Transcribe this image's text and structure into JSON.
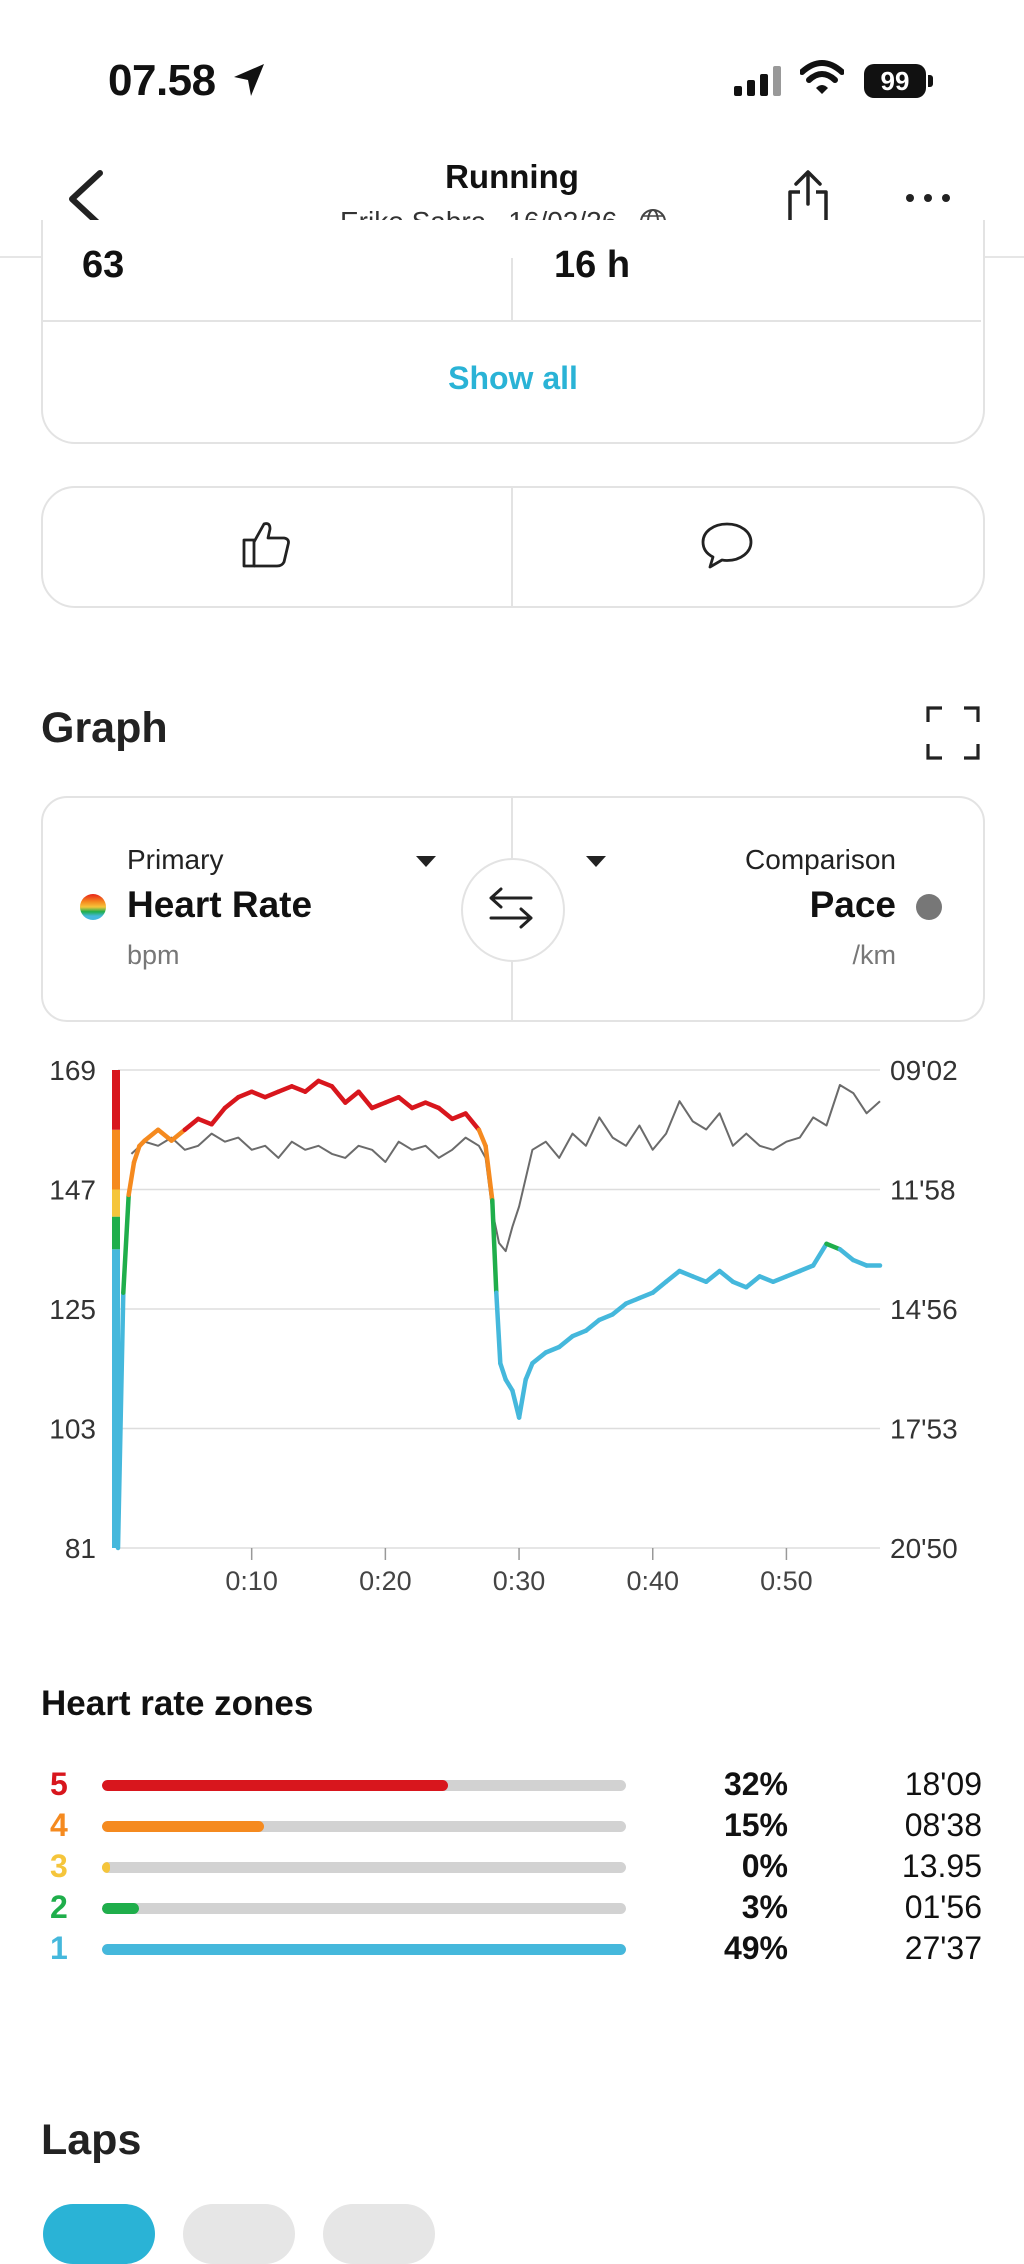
{
  "status_bar": {
    "time": "07.58",
    "battery": "99"
  },
  "header": {
    "title": "Running",
    "athlete": "Eriko Sabra",
    "date": "16/02/26"
  },
  "stats": {
    "left_value": "63",
    "right_value": "16 h",
    "show_all_label": "Show all"
  },
  "graph": {
    "title": "Graph",
    "primary": {
      "label": "Primary",
      "name": "Heart Rate",
      "unit": "bpm"
    },
    "comparison": {
      "label": "Comparison",
      "name": "Pace",
      "unit": "/km"
    }
  },
  "chart_data": {
    "type": "line",
    "left_axis": {
      "ticks": [
        "169",
        "147",
        "125",
        "103",
        "81"
      ],
      "ylim": [
        81,
        169
      ]
    },
    "right_axis": {
      "ticks": [
        "09'02",
        "11'58",
        "14'56",
        "17'53",
        "20'50"
      ]
    },
    "x_ticks": [
      "0:10",
      "0:20",
      "0:30",
      "0:40",
      "0:50"
    ],
    "xlim_min": [
      0,
      57
    ],
    "zone_colors": [
      "#45b8dc",
      "#1fae4b",
      "#f5c53b",
      "#f58a1f",
      "#d8161d"
    ],
    "zone_bounds_bpm": [
      81,
      136,
      142,
      147,
      158,
      169
    ],
    "series": [
      {
        "name": "Heart Rate",
        "x": [
          0,
          0.4,
          0.8,
          1.2,
          1.6,
          2,
          3,
          4,
          5,
          6,
          7,
          8,
          9,
          10,
          11,
          12,
          13,
          14,
          15,
          16,
          17,
          18,
          19,
          20,
          21,
          22,
          23,
          24,
          25,
          26,
          27,
          27.5,
          28,
          28.3,
          28.6,
          29,
          29.5,
          30,
          30.5,
          31,
          32,
          33,
          34,
          35,
          36,
          37,
          38,
          39,
          40,
          41,
          42,
          43,
          44,
          45,
          46,
          47,
          48,
          49,
          50,
          51,
          52,
          53,
          54,
          55,
          56,
          57
        ],
        "values": [
          81,
          128,
          146,
          152,
          155,
          156,
          158,
          156,
          158,
          160,
          159,
          162,
          164,
          165,
          164,
          165,
          166,
          165,
          167,
          166,
          163,
          165,
          162,
          163,
          164,
          162,
          163,
          162,
          160,
          161,
          158,
          155,
          145,
          128,
          115,
          112,
          110,
          105,
          112,
          115,
          117,
          118,
          120,
          121,
          123,
          124,
          126,
          127,
          128,
          130,
          132,
          131,
          130,
          132,
          130,
          129,
          131,
          130,
          131,
          132,
          133,
          137,
          136,
          134,
          133,
          133
        ]
      },
      {
        "name": "Pace",
        "x": [
          1,
          2,
          3,
          4,
          5,
          6,
          7,
          8,
          9,
          10,
          11,
          12,
          13,
          14,
          15,
          16,
          17,
          18,
          19,
          20,
          21,
          22,
          23,
          24,
          25,
          26,
          27,
          27.5,
          28,
          28.5,
          29,
          29.5,
          30,
          31,
          32,
          33,
          34,
          35,
          36,
          37,
          38,
          39,
          40,
          41,
          42,
          43,
          44,
          45,
          46,
          47,
          48,
          49,
          50,
          51,
          52,
          53,
          54,
          55,
          56,
          57
        ],
        "values_min_per_km": [
          11.1,
          10.8,
          10.9,
          10.7,
          11.0,
          10.9,
          10.6,
          10.8,
          10.7,
          11.0,
          10.9,
          11.2,
          10.8,
          11.0,
          10.9,
          11.1,
          11.2,
          10.9,
          11.0,
          11.3,
          10.8,
          11.0,
          10.9,
          11.2,
          11.0,
          10.7,
          10.9,
          11.2,
          12.5,
          13.3,
          13.5,
          12.9,
          12.4,
          11.0,
          10.8,
          11.2,
          10.6,
          10.9,
          10.2,
          10.7,
          10.9,
          10.4,
          11.0,
          10.6,
          9.8,
          10.3,
          10.5,
          10.1,
          10.9,
          10.6,
          10.9,
          11.0,
          10.8,
          10.7,
          10.2,
          10.4,
          9.4,
          9.6,
          10.1,
          9.8
        ]
      }
    ],
    "grid": true
  },
  "hr_zones": {
    "title": "Heart rate zones",
    "zones": [
      {
        "num": "5",
        "pct": "32%",
        "fraction": 0.66,
        "time": "18'09",
        "color": "#d8161d"
      },
      {
        "num": "4",
        "pct": "15%",
        "fraction": 0.31,
        "time": "08'38",
        "color": "#f58a1f"
      },
      {
        "num": "3",
        "pct": "0%",
        "fraction": 0.015,
        "time": "13.95",
        "color": "#f5c53b"
      },
      {
        "num": "2",
        "pct": "3%",
        "fraction": 0.07,
        "time": "01'56",
        "color": "#1fae4b"
      },
      {
        "num": "1",
        "pct": "49%",
        "fraction": 1.0,
        "time": "27'37",
        "color": "#45b8dc"
      }
    ]
  },
  "laps": {
    "title": "Laps"
  }
}
